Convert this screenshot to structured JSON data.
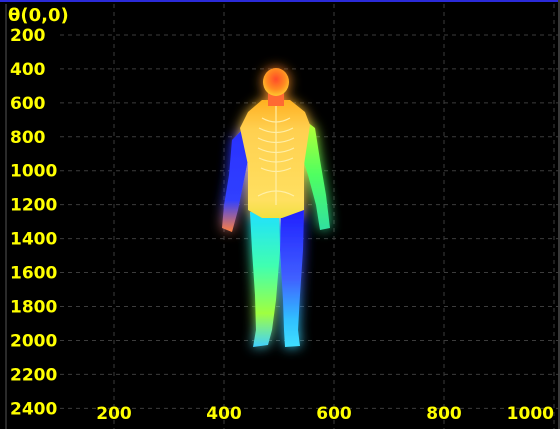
{
  "viewer": {
    "origin_label": "θ(0,0)",
    "y_ticks": [
      "200",
      "400",
      "600",
      "800",
      "1000",
      "1200",
      "1400",
      "1600",
      "1800",
      "2000",
      "2200",
      "2400"
    ],
    "x_ticks": [
      "200",
      "400",
      "600",
      "800",
      "1000"
    ],
    "x_range": [
      0,
      1000
    ],
    "y_range": [
      0,
      2400
    ],
    "grid": true,
    "grid_style": "dashed",
    "background": "#000000",
    "tick_color": "#ffff00",
    "grid_color": "#3c3c3c"
  }
}
